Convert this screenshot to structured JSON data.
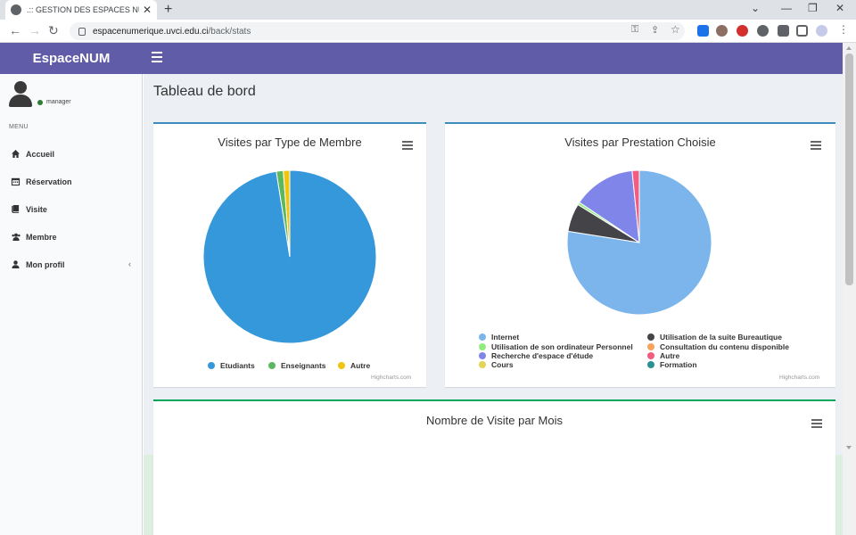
{
  "browser": {
    "tab_title": ".:: GESTION DES ESPACES NUMERI",
    "url_domain": "espacenumerique.uvci.edu.ci",
    "url_path": "/back/stats"
  },
  "header": {
    "brand": "EspaceNUM"
  },
  "user": {
    "role": "manager"
  },
  "sidebar": {
    "menu_header": "MENU",
    "items": [
      {
        "label": "Accueil",
        "icon": "home-icon"
      },
      {
        "label": "Réservation",
        "icon": "calendar-icon"
      },
      {
        "label": "Visite",
        "icon": "book-icon"
      },
      {
        "label": "Membre",
        "icon": "users-icon"
      },
      {
        "label": "Mon profil",
        "icon": "user-icon"
      }
    ]
  },
  "page_title": "Tableau de bord",
  "credits": "Highcharts.com",
  "colors": {
    "accent": "#605ca8",
    "box_border_blue": "#3c8dbc",
    "box_border_green": "#00a65a"
  },
  "chart_data": [
    {
      "type": "pie",
      "title": "Visites par Type de Membre",
      "legend": "bottom",
      "categories": [
        "Etudiants",
        "Enseignants",
        "Autre"
      ],
      "values": [
        97.5,
        1.3,
        1.2
      ],
      "colors": [
        "#3498db",
        "#5cb85c",
        "#f1c40f"
      ]
    },
    {
      "type": "pie",
      "title": "Visites par Prestation Choisie",
      "legend": "bottom",
      "categories": [
        "Internet",
        "Utilisation de la suite Bureautique",
        "Utilisation de son ordinateur Personnel",
        "Consultation du contenu disponible",
        "Recherche d'espace d'étude",
        "Autre",
        "Cours",
        "Formation"
      ],
      "values": [
        77.5,
        6.3,
        0.6,
        0,
        14,
        1.6,
        0,
        0
      ],
      "colors": [
        "#7cb5ec",
        "#434348",
        "#90ed7d",
        "#f7a35c",
        "#8085e9",
        "#f15c80",
        "#e4d354",
        "#2b908f"
      ]
    },
    {
      "type": "bar",
      "title": "Nombre de Visite par Mois"
    }
  ]
}
